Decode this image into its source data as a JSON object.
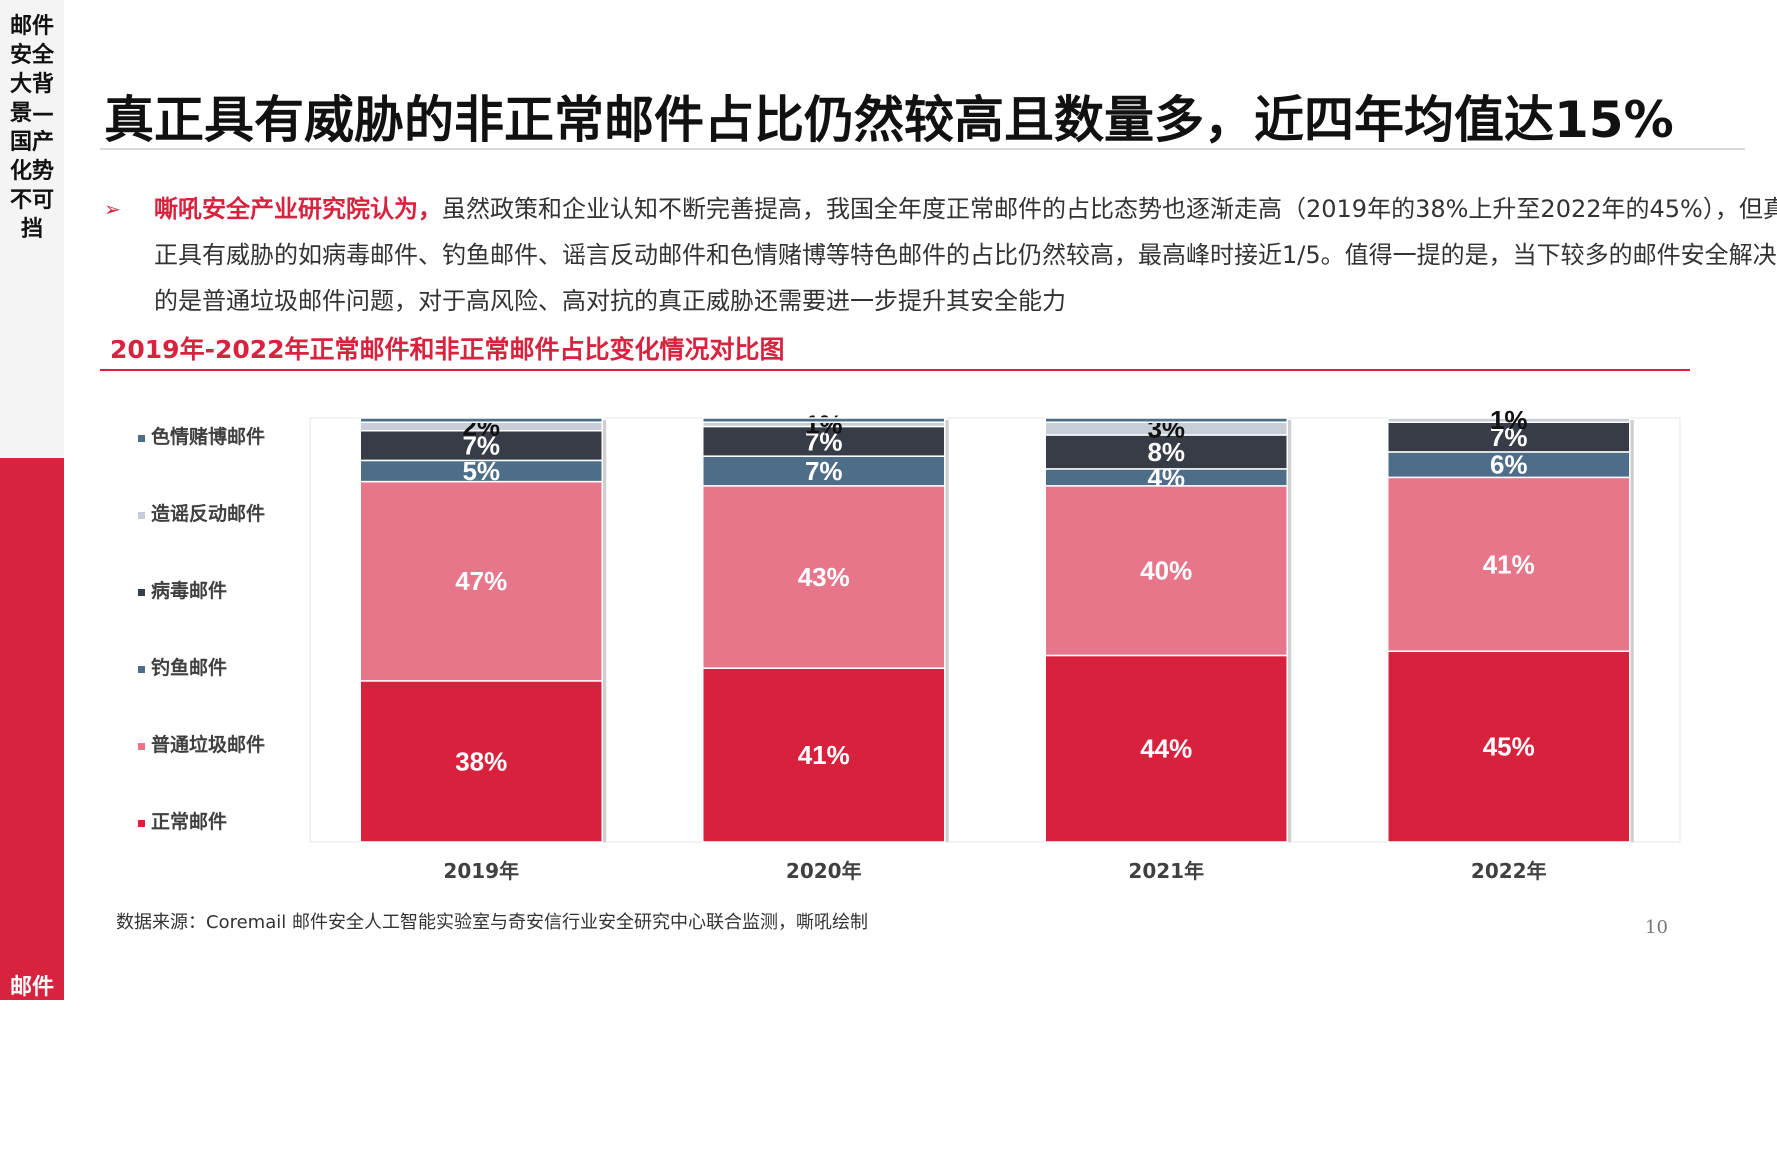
{
  "sidebar": {
    "top_text": "邮件安全大背景—国产化势不可挡",
    "bottom_text": "邮件安全大背景—安全主旋律"
  },
  "title": "真正具有威胁的非正常邮件占比仍然较高且数量多，近四年均值达15%",
  "bullet": {
    "highlight": "嘶吼安全产业研究院认为，",
    "text": "虽然政策和企业认知不断完善提高，我国全年度正常邮件的占比态势也逐渐走高（2019年的38%上升至2022年的45%），但真正具有威胁的如病毒邮件、钓鱼邮件、谣言反动邮件和色情赌博等特色邮件的占比仍然较高，最高峰时接近1/5。值得一提的是，当下较多的邮件安全解决的是普通垃圾邮件问题，对于高风险、高对抗的真正威胁还需要进一步提升其安全能力"
  },
  "chart_title": "2019年-2022年正常邮件和非正常邮件占比变化情况对比图",
  "chart_data": {
    "type": "bar",
    "stacked": true,
    "categories": [
      "2019年",
      "2020年",
      "2021年",
      "2022年"
    ],
    "series": [
      {
        "name": "正常邮件",
        "color": "#d8213d",
        "values": [
          38,
          41,
          44,
          45
        ],
        "labels": [
          "38%",
          "41%",
          "44%",
          "45%"
        ]
      },
      {
        "name": "普通垃圾邮件",
        "color": "#e8768b",
        "values": [
          47,
          43,
          40,
          41
        ],
        "labels": [
          "47%",
          "43%",
          "40%",
          "41%"
        ]
      },
      {
        "name": "钓鱼邮件",
        "color": "#4e6d89",
        "values": [
          5,
          7,
          4,
          6
        ],
        "labels": [
          "5%",
          "7%",
          "4%",
          "6%"
        ]
      },
      {
        "name": "病毒邮件",
        "color": "#373c47",
        "values": [
          7,
          7,
          8,
          7
        ],
        "labels": [
          "7%",
          "7%",
          "8%",
          "7%"
        ]
      },
      {
        "name": "造谣反动邮件",
        "color": "#c7ced8",
        "values": [
          2,
          1,
          3,
          1
        ],
        "labels": [
          "2%",
          "1%",
          "3%",
          "1%"
        ]
      },
      {
        "name": "色情赌博邮件",
        "color": "#4e6d89",
        "values": [
          1,
          1,
          1,
          0
        ],
        "labels": [
          "",
          "",
          "",
          ""
        ]
      }
    ],
    "ylim": [
      0,
      100
    ],
    "legend_position": "left",
    "grid": false
  },
  "source": "数据来源：Coremail 邮件安全人工智能实验室与奇安信行业安全研究中心联合监测，嘶吼绘制",
  "page_number": "10"
}
